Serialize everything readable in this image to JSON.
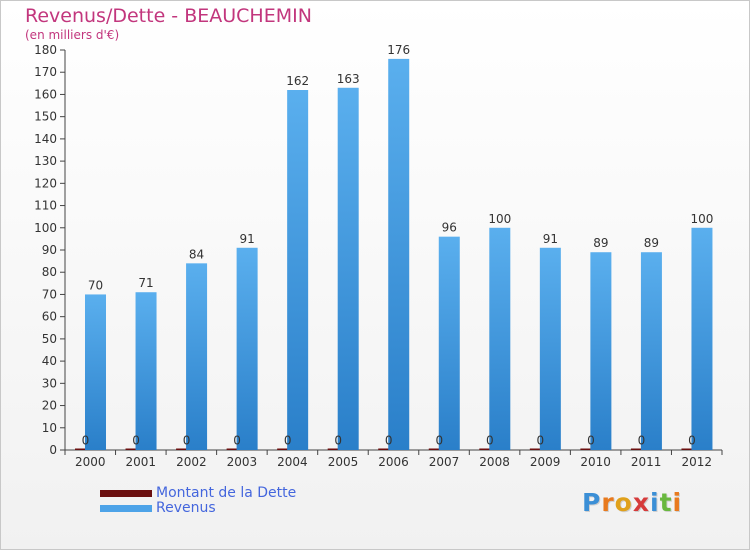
{
  "title": "Revenus/Dette - BEAUCHEMIN",
  "subtitle": "(en milliers d'€)",
  "logo": {
    "text": "Proxiti",
    "colors": [
      "#3b8fd6",
      "#e87a1e",
      "#e0a11b",
      "#d63b3b",
      "#3b8fd6",
      "#69b83e",
      "#e87a1e"
    ]
  },
  "colors": {
    "dette": "#6b0f0f",
    "revenus": "#4da3e8",
    "revenus_dark": "#2a7fc9",
    "title": "#c2367d",
    "legend_text": "#4466dd"
  },
  "chart_data": {
    "type": "bar",
    "title": "Revenus/Dette - BEAUCHEMIN",
    "subtitle": "(en milliers d'€)",
    "xlabel": "",
    "ylabel": "",
    "categories": [
      "2000",
      "2001",
      "2002",
      "2003",
      "2004",
      "2005",
      "2006",
      "2007",
      "2008",
      "2009",
      "2010",
      "2011",
      "2012"
    ],
    "series": [
      {
        "name": "Montant de la Dette",
        "values": [
          0,
          0,
          0,
          0,
          0,
          0,
          0,
          0,
          0,
          0,
          0,
          0,
          0
        ]
      },
      {
        "name": "Revenus",
        "values": [
          70,
          71,
          84,
          91,
          162,
          163,
          176,
          96,
          100,
          91,
          89,
          89,
          100
        ]
      }
    ],
    "ylim": [
      0,
      180
    ],
    "yticks": [
      0,
      10,
      20,
      30,
      40,
      50,
      60,
      70,
      80,
      90,
      100,
      110,
      120,
      130,
      140,
      150,
      160,
      170,
      180
    ],
    "grid": false,
    "legend": "bottom-left"
  }
}
